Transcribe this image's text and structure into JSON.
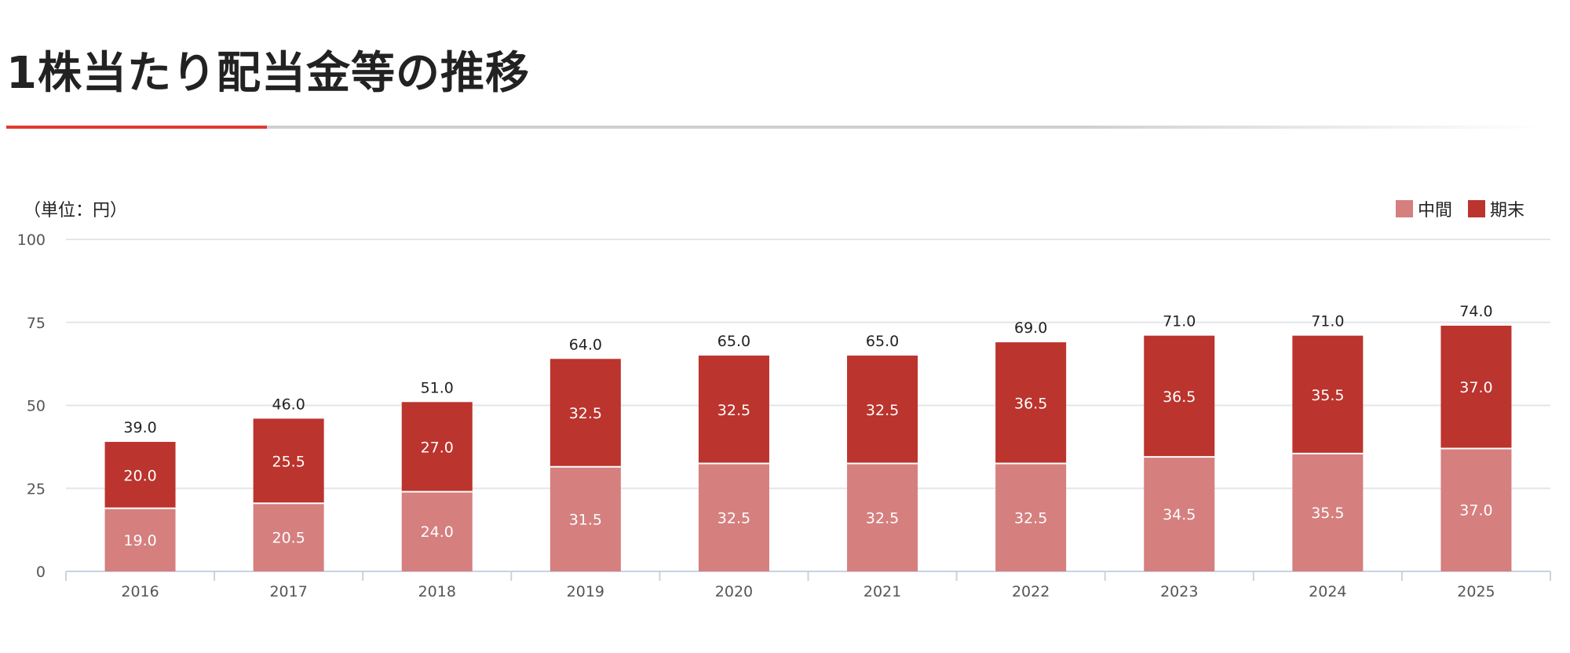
{
  "page": {
    "title": "1株当たり配当金等の推移"
  },
  "chart_data": {
    "type": "bar",
    "stacked": true,
    "unit_label": "（単位：円）",
    "categories": [
      "2016",
      "2017",
      "2018",
      "2019",
      "2020",
      "2021",
      "2022",
      "2023",
      "2024",
      "2025"
    ],
    "series": [
      {
        "name": "中間",
        "color": "#d57f7f",
        "values": [
          19.0,
          20.5,
          24.0,
          31.5,
          32.5,
          32.5,
          32.5,
          34.5,
          35.5,
          37.0
        ],
        "labels": [
          "19.0",
          "20.5",
          "24.0",
          "31.5",
          "32.5",
          "32.5",
          "32.5",
          "34.5",
          "35.5",
          "37.0"
        ]
      },
      {
        "name": "期末",
        "color": "#bb342d",
        "values": [
          20.0,
          25.5,
          27.0,
          32.5,
          32.5,
          32.5,
          36.5,
          36.5,
          35.5,
          37.0
        ],
        "labels": [
          "20.0",
          "25.5",
          "27.0",
          "32.5",
          "32.5",
          "32.5",
          "36.5",
          "36.5",
          "35.5",
          "37.0"
        ]
      }
    ],
    "totals": [
      39.0,
      46.0,
      51.0,
      64.0,
      65.0,
      65.0,
      69.0,
      71.0,
      71.0,
      74.0
    ],
    "total_labels": [
      "39.0",
      "46.0",
      "51.0",
      "64.0",
      "65.0",
      "65.0",
      "69.0",
      "71.0",
      "71.0",
      "74.0"
    ],
    "ylim": [
      0,
      100
    ],
    "yticks": [
      0,
      25,
      50,
      75,
      100
    ],
    "ytick_labels": [
      "0",
      "25",
      "50",
      "75",
      "100"
    ],
    "grid": true,
    "legend_position": "top-right"
  }
}
